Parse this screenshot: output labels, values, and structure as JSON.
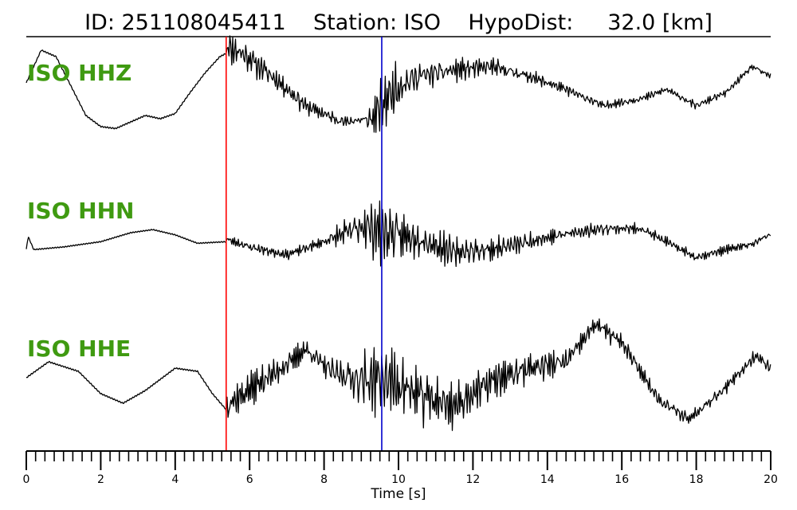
{
  "chart_data": {
    "type": "line",
    "title": "ID: 251108045411    Station: ISO    HypoDist:     32.0 [km]",
    "xlabel": "Time [s]",
    "xlim": [
      0,
      20
    ],
    "x_major_ticks": [
      0,
      2,
      4,
      6,
      8,
      10,
      12,
      14,
      16,
      18,
      20
    ],
    "x_minor_step": 0.25,
    "grid": false,
    "picks": [
      {
        "name": "P pick",
        "time": 5.37,
        "color": "#ff0000"
      },
      {
        "name": "S pick",
        "time": 9.55,
        "color": "#0000cc"
      }
    ],
    "series": [
      {
        "name": "ISO HHZ",
        "color": "#000000",
        "label_color": "#3f9a11",
        "pre_pick": [
          [
            0,
            0.05
          ],
          [
            0.4,
            0.55
          ],
          [
            0.8,
            0.45
          ],
          [
            1.2,
            0.0
          ],
          [
            1.6,
            -0.45
          ],
          [
            2.0,
            -0.62
          ],
          [
            2.4,
            -0.65
          ],
          [
            2.8,
            -0.55
          ],
          [
            3.2,
            -0.45
          ],
          [
            3.6,
            -0.5
          ],
          [
            4.0,
            -0.42
          ],
          [
            4.4,
            -0.1
          ],
          [
            4.8,
            0.2
          ],
          [
            5.2,
            0.45
          ],
          [
            5.37,
            0.5
          ]
        ],
        "envelope": [
          [
            5.37,
            0.6
          ],
          [
            5.8,
            0.5
          ],
          [
            6.5,
            0.2
          ],
          [
            7.5,
            -0.3
          ],
          [
            8.5,
            -0.55
          ],
          [
            9.3,
            -0.5
          ],
          [
            9.8,
            -0.1
          ],
          [
            10.5,
            0.15
          ],
          [
            11.5,
            0.25
          ],
          [
            12.5,
            0.3
          ],
          [
            13.5,
            0.15
          ],
          [
            14.5,
            -0.05
          ],
          [
            15.5,
            -0.3
          ],
          [
            16.5,
            -0.2
          ],
          [
            17.2,
            -0.05
          ],
          [
            18.0,
            -0.3
          ],
          [
            18.8,
            -0.1
          ],
          [
            19.5,
            0.3
          ],
          [
            20.0,
            0.15
          ]
        ],
        "noise": [
          [
            5.37,
            0.35
          ],
          [
            7.0,
            0.2
          ],
          [
            9.0,
            0.12
          ],
          [
            9.55,
            0.55
          ],
          [
            11.0,
            0.25
          ],
          [
            14.0,
            0.12
          ],
          [
            17.0,
            0.08
          ],
          [
            20.0,
            0.06
          ]
        ],
        "seed": 11
      },
      {
        "name": "ISO HHN",
        "color": "#000000",
        "label_color": "#3f9a11",
        "pre_pick": [
          [
            0,
            -0.2
          ],
          [
            0.05,
            0.05
          ],
          [
            0.2,
            -0.2
          ],
          [
            1.0,
            -0.15
          ],
          [
            2.0,
            -0.05
          ],
          [
            2.8,
            0.12
          ],
          [
            3.4,
            0.18
          ],
          [
            4.0,
            0.08
          ],
          [
            4.6,
            -0.08
          ],
          [
            5.37,
            -0.05
          ]
        ],
        "envelope": [
          [
            5.37,
            0.0
          ],
          [
            6.0,
            -0.15
          ],
          [
            7.0,
            -0.3
          ],
          [
            8.0,
            -0.05
          ],
          [
            9.0,
            0.25
          ],
          [
            9.55,
            0.15
          ],
          [
            10.5,
            0.0
          ],
          [
            11.5,
            -0.25
          ],
          [
            12.5,
            -0.2
          ],
          [
            13.5,
            -0.05
          ],
          [
            14.5,
            0.1
          ],
          [
            15.5,
            0.2
          ],
          [
            16.5,
            0.2
          ],
          [
            17.2,
            -0.05
          ],
          [
            18.0,
            -0.35
          ],
          [
            18.8,
            -0.2
          ],
          [
            19.5,
            -0.1
          ],
          [
            20.0,
            0.1
          ]
        ],
        "noise": [
          [
            5.37,
            0.12
          ],
          [
            8.0,
            0.12
          ],
          [
            9.55,
            0.85
          ],
          [
            10.5,
            0.5
          ],
          [
            11.5,
            0.35
          ],
          [
            14.0,
            0.2
          ],
          [
            17.0,
            0.12
          ],
          [
            20.0,
            0.1
          ]
        ],
        "seed": 23
      },
      {
        "name": "ISO HHE",
        "color": "#000000",
        "label_color": "#3f9a11",
        "pre_pick": [
          [
            0,
            -0.05
          ],
          [
            0.6,
            0.2
          ],
          [
            1.4,
            0.05
          ],
          [
            2.0,
            -0.3
          ],
          [
            2.6,
            -0.45
          ],
          [
            3.2,
            -0.25
          ],
          [
            4.0,
            0.1
          ],
          [
            4.6,
            0.05
          ],
          [
            5.0,
            -0.3
          ],
          [
            5.37,
            -0.55
          ]
        ],
        "envelope": [
          [
            5.37,
            -0.5
          ],
          [
            6.2,
            -0.15
          ],
          [
            7.0,
            0.15
          ],
          [
            7.5,
            0.4
          ],
          [
            8.2,
            0.05
          ],
          [
            9.0,
            -0.1
          ],
          [
            9.55,
            -0.05
          ],
          [
            10.5,
            -0.3
          ],
          [
            11.5,
            -0.5
          ],
          [
            12.5,
            -0.1
          ],
          [
            13.5,
            0.1
          ],
          [
            14.5,
            0.2
          ],
          [
            15.3,
            0.8
          ],
          [
            16.0,
            0.5
          ],
          [
            17.0,
            -0.4
          ],
          [
            17.8,
            -0.7
          ],
          [
            18.8,
            -0.2
          ],
          [
            19.6,
            0.3
          ],
          [
            20.0,
            0.1
          ]
        ],
        "noise": [
          [
            5.37,
            0.4
          ],
          [
            8.0,
            0.22
          ],
          [
            9.55,
            0.75
          ],
          [
            11.0,
            0.55
          ],
          [
            13.0,
            0.35
          ],
          [
            15.0,
            0.22
          ],
          [
            17.0,
            0.15
          ],
          [
            20.0,
            0.12
          ]
        ],
        "seed": 37
      }
    ]
  }
}
